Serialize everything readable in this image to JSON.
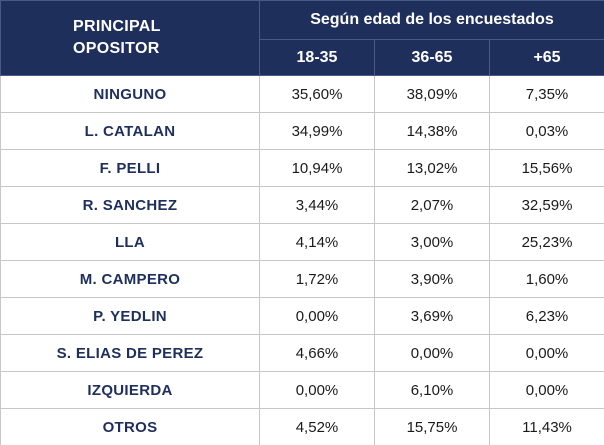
{
  "table": {
    "corner_line1": "PRINCIPAL",
    "corner_line2": "OPOSITOR",
    "group_header": "Según edad de los encuestados",
    "age_headers": [
      "18-35",
      "36-65",
      "+65"
    ],
    "rows": [
      {
        "label": "NINGUNO",
        "values": [
          "35,60%",
          "38,09%",
          "7,35%"
        ]
      },
      {
        "label": "L. CATALAN",
        "values": [
          "34,99%",
          "14,38%",
          "0,03%"
        ]
      },
      {
        "label": "F. PELLI",
        "values": [
          "10,94%",
          "13,02%",
          "15,56%"
        ]
      },
      {
        "label": "R. SANCHEZ",
        "values": [
          "3,44%",
          "2,07%",
          "32,59%"
        ]
      },
      {
        "label": "LLA",
        "values": [
          "4,14%",
          "3,00%",
          "25,23%"
        ]
      },
      {
        "label": "M. CAMPERO",
        "values": [
          "1,72%",
          "3,90%",
          "1,60%"
        ]
      },
      {
        "label": "P. YEDLIN",
        "values": [
          "0,00%",
          "3,69%",
          "6,23%"
        ]
      },
      {
        "label": "S. ELIAS DE PEREZ",
        "values": [
          "4,66%",
          "0,00%",
          "0,00%"
        ]
      },
      {
        "label": "IZQUIERDA",
        "values": [
          "0,00%",
          "6,10%",
          "0,00%"
        ]
      },
      {
        "label": "OTROS",
        "values": [
          "4,52%",
          "15,75%",
          "11,43%"
        ]
      }
    ]
  },
  "colors": {
    "header_bg": "#1f2f5c",
    "header_text": "#ffffff",
    "label_text": "#1f2f5c"
  }
}
